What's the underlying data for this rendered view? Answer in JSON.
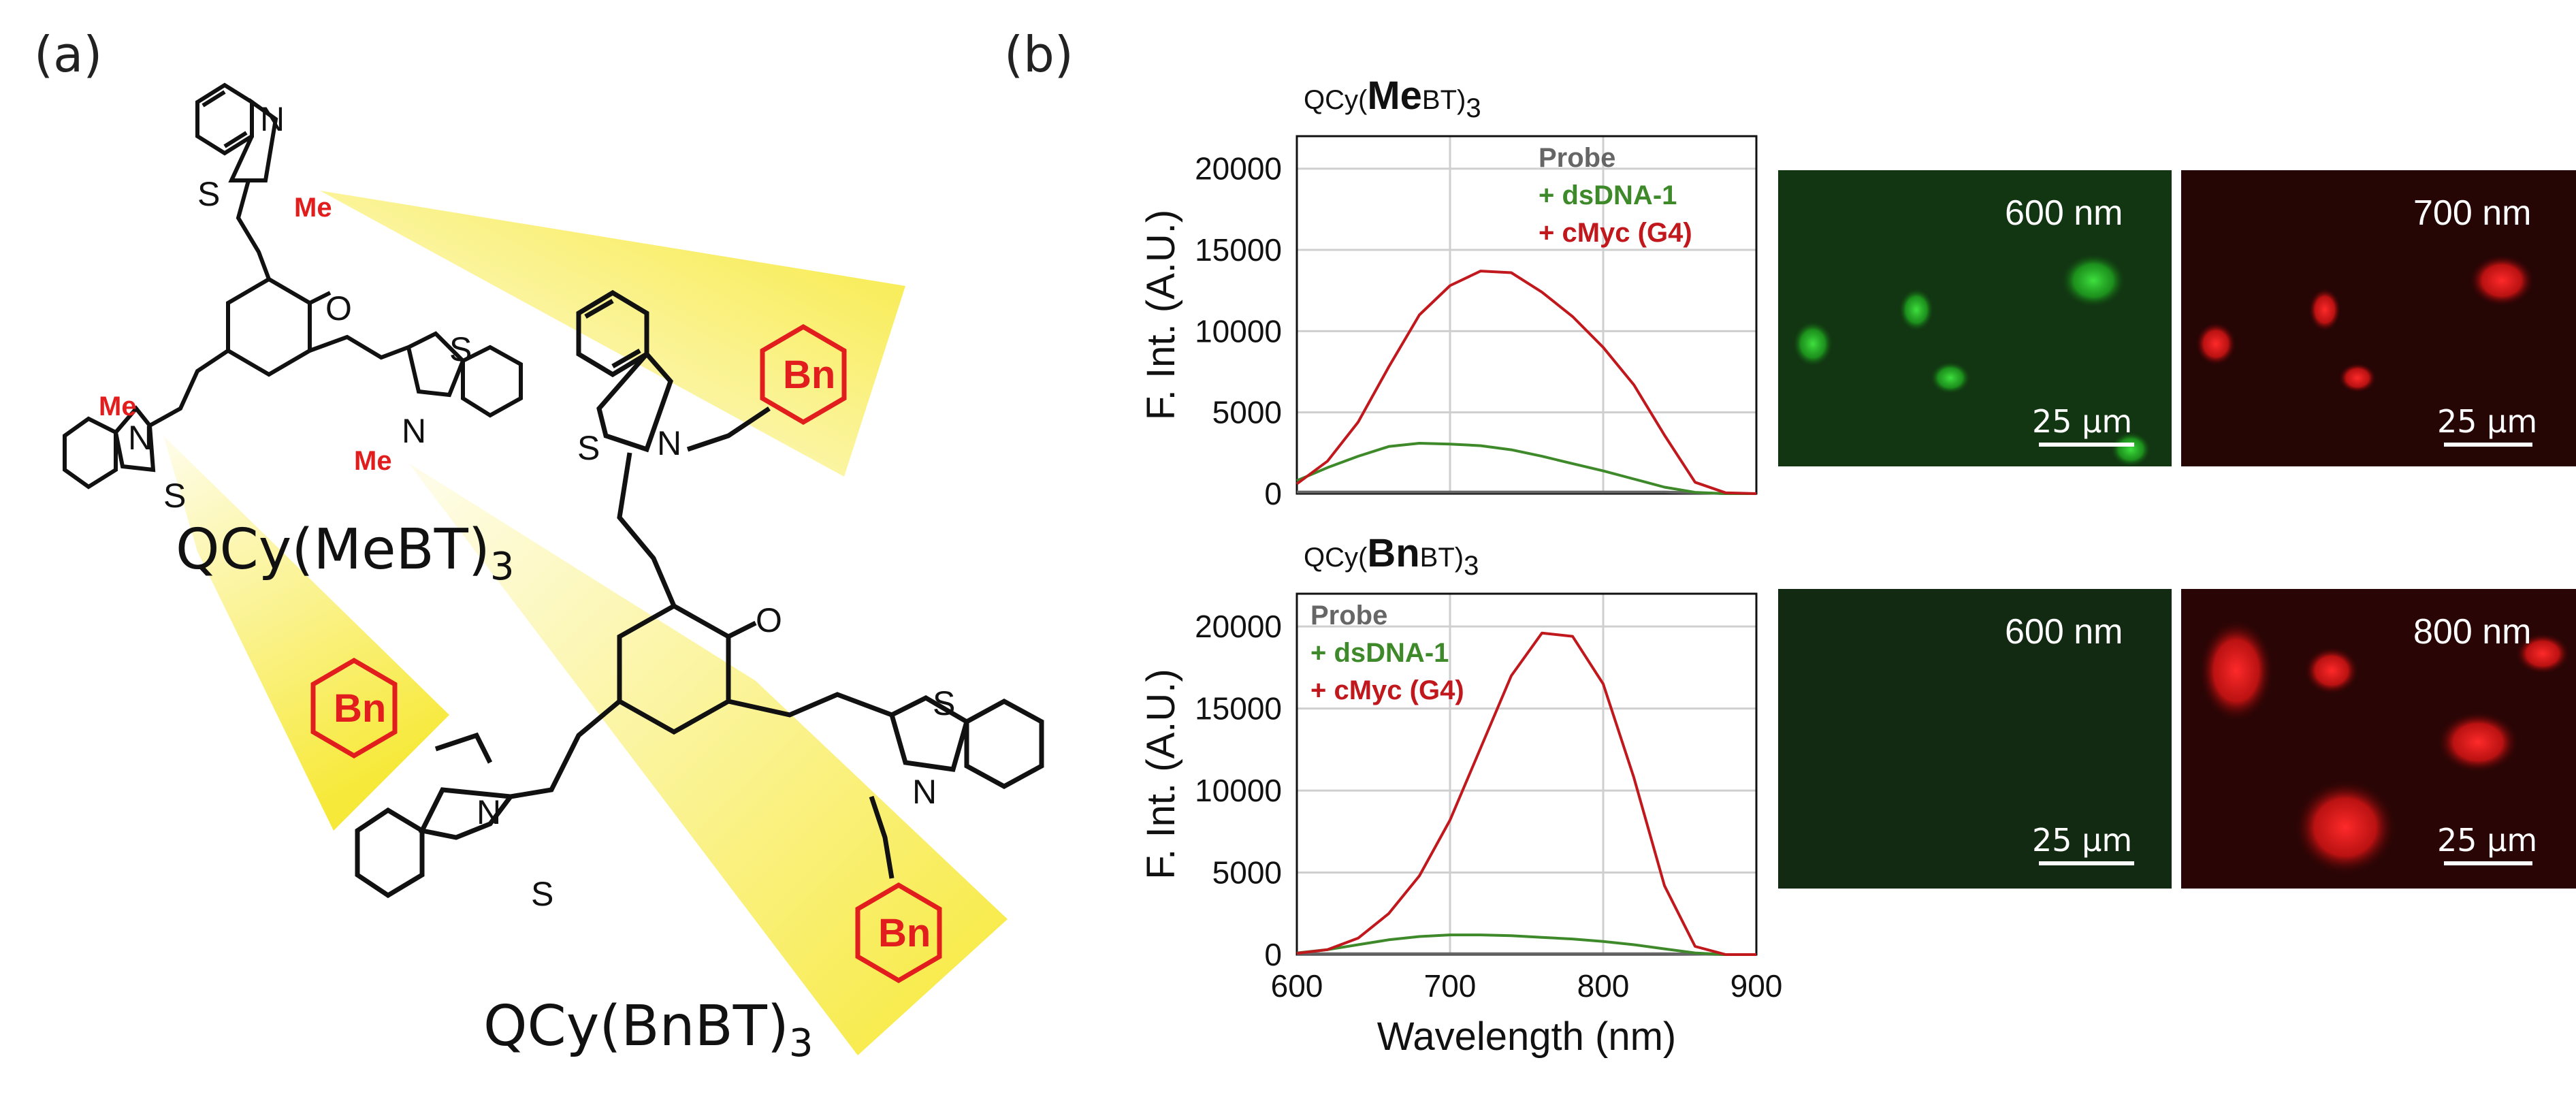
{
  "panels": {
    "a": "(a)",
    "b": "(b)"
  },
  "molecules": {
    "me_name": "QCy(MeBT)",
    "me_sub": "3",
    "bn_name": "QCy(BnBT)",
    "bn_sub": "3",
    "atoms": {
      "N": "N",
      "S": "S",
      "O": "O",
      "Me": "Me",
      "Bn": "Bn",
      "plus": "+"
    }
  },
  "colors": {
    "probe": "#666666",
    "dsdna": "#3e8a2a",
    "cmyc": "#c0181c",
    "highlight": "#f7e93a",
    "red_text": "#e21d1d"
  },
  "chart_data": [
    {
      "type": "line",
      "title_prefix": "QCy(",
      "title_bold": "Me",
      "title_suffix": "BT)",
      "title_sub": "3",
      "xlabel": "",
      "ylabel": "F. Int. (A.U.)",
      "xlim": [
        600,
        900
      ],
      "ylim": [
        0,
        22000
      ],
      "xticks": [],
      "yticks": [
        "0",
        "5000",
        "10000",
        "15000",
        "20000"
      ],
      "grid": true,
      "legend_position": "top-right",
      "x": [
        600,
        620,
        640,
        660,
        680,
        700,
        720,
        740,
        760,
        780,
        800,
        820,
        840,
        860,
        880,
        900
      ],
      "series": [
        {
          "name": "Probe",
          "color_key": "probe",
          "values": [
            100,
            100,
            100,
            100,
            100,
            100,
            100,
            100,
            100,
            100,
            100,
            100,
            100,
            50,
            0,
            0
          ]
        },
        {
          "name": "+ dsDNA-1",
          "color_key": "dsdna",
          "values": [
            800,
            1600,
            2300,
            2900,
            3100,
            3050,
            2950,
            2700,
            2300,
            1850,
            1400,
            900,
            400,
            80,
            0,
            0
          ]
        },
        {
          "name": "+ cMyc (G4)",
          "color_key": "cmyc",
          "values": [
            600,
            2000,
            4400,
            7800,
            11000,
            12800,
            13700,
            13600,
            12400,
            10900,
            9000,
            6700,
            3600,
            700,
            50,
            0
          ]
        }
      ]
    },
    {
      "type": "line",
      "title_prefix": "QCy(",
      "title_bold": "Bn",
      "title_suffix": "BT)",
      "title_sub": "3",
      "xlabel": "Wavelength (nm)",
      "ylabel": "F. Int. (A.U.)",
      "xlim": [
        600,
        900
      ],
      "ylim": [
        0,
        22000
      ],
      "xticks": [
        "600",
        "700",
        "800",
        "900"
      ],
      "yticks": [
        "0",
        "5000",
        "10000",
        "15000",
        "20000"
      ],
      "grid": true,
      "legend_position": "top-left",
      "x": [
        600,
        620,
        640,
        660,
        680,
        700,
        720,
        740,
        760,
        780,
        800,
        820,
        840,
        860,
        880,
        900
      ],
      "series": [
        {
          "name": "Probe",
          "color_key": "probe",
          "values": [
            50,
            50,
            50,
            50,
            50,
            50,
            50,
            50,
            50,
            50,
            50,
            50,
            50,
            30,
            0,
            0
          ]
        },
        {
          "name": "+ dsDNA-1",
          "color_key": "dsdna",
          "values": [
            100,
            300,
            600,
            900,
            1100,
            1200,
            1200,
            1150,
            1050,
            950,
            800,
            600,
            350,
            100,
            0,
            0
          ]
        },
        {
          "name": "+ cMyc (G4)",
          "color_key": "cmyc",
          "values": [
            80,
            300,
            1000,
            2500,
            4800,
            8200,
            12600,
            17000,
            19600,
            19400,
            16500,
            10800,
            4200,
            500,
            0,
            0
          ]
        }
      ]
    }
  ],
  "micrographs": [
    {
      "label": "600 nm",
      "scale": "25 µm",
      "color": "green"
    },
    {
      "label": "700 nm",
      "scale": "25 µm",
      "color": "red"
    },
    {
      "label": "600 nm",
      "scale": "25 µm",
      "color": "green"
    },
    {
      "label": "800 nm",
      "scale": "25 µm",
      "color": "red"
    }
  ]
}
